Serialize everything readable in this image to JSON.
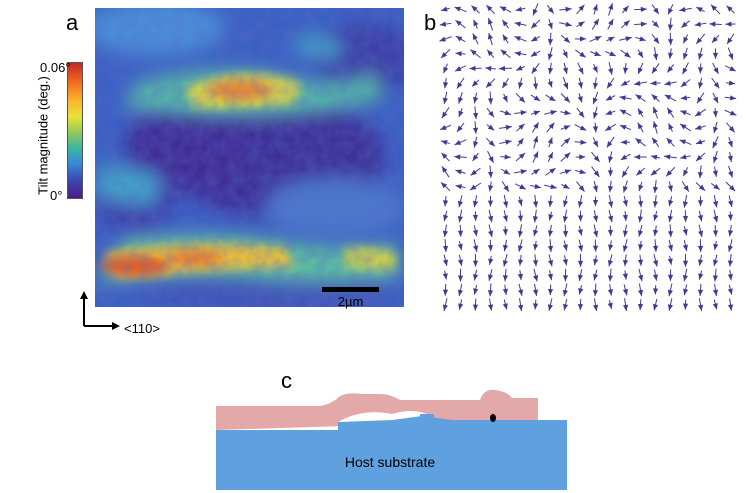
{
  "panels": {
    "a": {
      "letter": "a",
      "colorbar": {
        "title": "Tilt magnitude (deg.)",
        "max_label": "0.06°",
        "min_label": "0°"
      },
      "scale_bar": "2µm",
      "axis_label": "<110>"
    },
    "b": {
      "letter": "b",
      "arrow_color": "#3b3c94"
    },
    "c": {
      "letter": "c",
      "substrate_label": "Host substrate",
      "colors": {
        "film": "#e3a8a8",
        "substrate": "#5fa0e0",
        "defect": "#000000"
      }
    }
  },
  "colors": {
    "map_low": "#4a2a8a",
    "map_mid": "#3a86d4",
    "map_high": "#c62827"
  }
}
